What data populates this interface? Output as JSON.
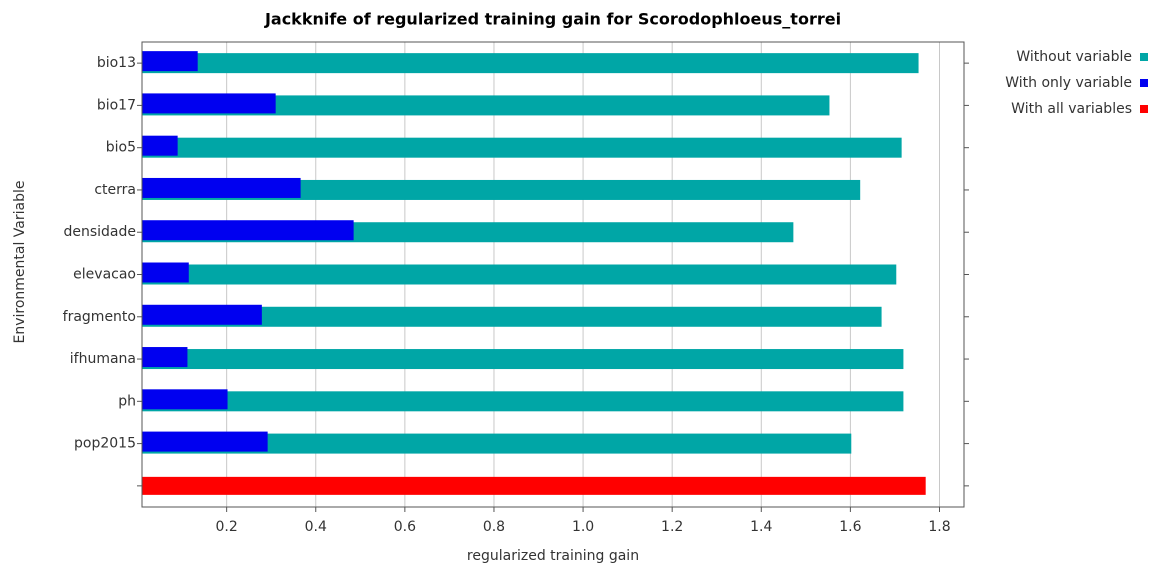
{
  "chart_data": {
    "type": "bar",
    "orientation": "horizontal",
    "title": "Jackknife of regularized training gain for Scorodophloeus_torrei",
    "xlabel": "regularized training gain",
    "ylabel": "Environmental Variable",
    "categories": [
      "bio13",
      "bio17",
      "bio5",
      "cterra",
      "densidade",
      "elevacao",
      "fragmento",
      "ifhumana",
      "ph",
      "pop2015",
      null
    ],
    "series": [
      {
        "name": "Without variable",
        "color": "#00a6a6",
        "values": [
          1.753,
          1.553,
          1.715,
          1.622,
          1.472,
          1.703,
          1.67,
          1.719,
          1.719,
          1.602,
          null
        ]
      },
      {
        "name": "With only variable",
        "color": "#0000f0",
        "values": [
          0.135,
          0.31,
          0.09,
          0.366,
          0.485,
          0.115,
          0.279,
          0.112,
          0.202,
          0.292,
          null
        ]
      },
      {
        "name": "With all variables",
        "color": "#ff0000",
        "values": [
          null,
          null,
          null,
          null,
          null,
          null,
          null,
          null,
          null,
          null,
          1.769
        ]
      }
    ],
    "xlim": [
      0.01,
      1.855
    ],
    "xticks": [
      0.2,
      0.4,
      0.6,
      0.8,
      1.0,
      1.2,
      1.4,
      1.6,
      1.8
    ],
    "grid": true,
    "legend": "upper right"
  }
}
